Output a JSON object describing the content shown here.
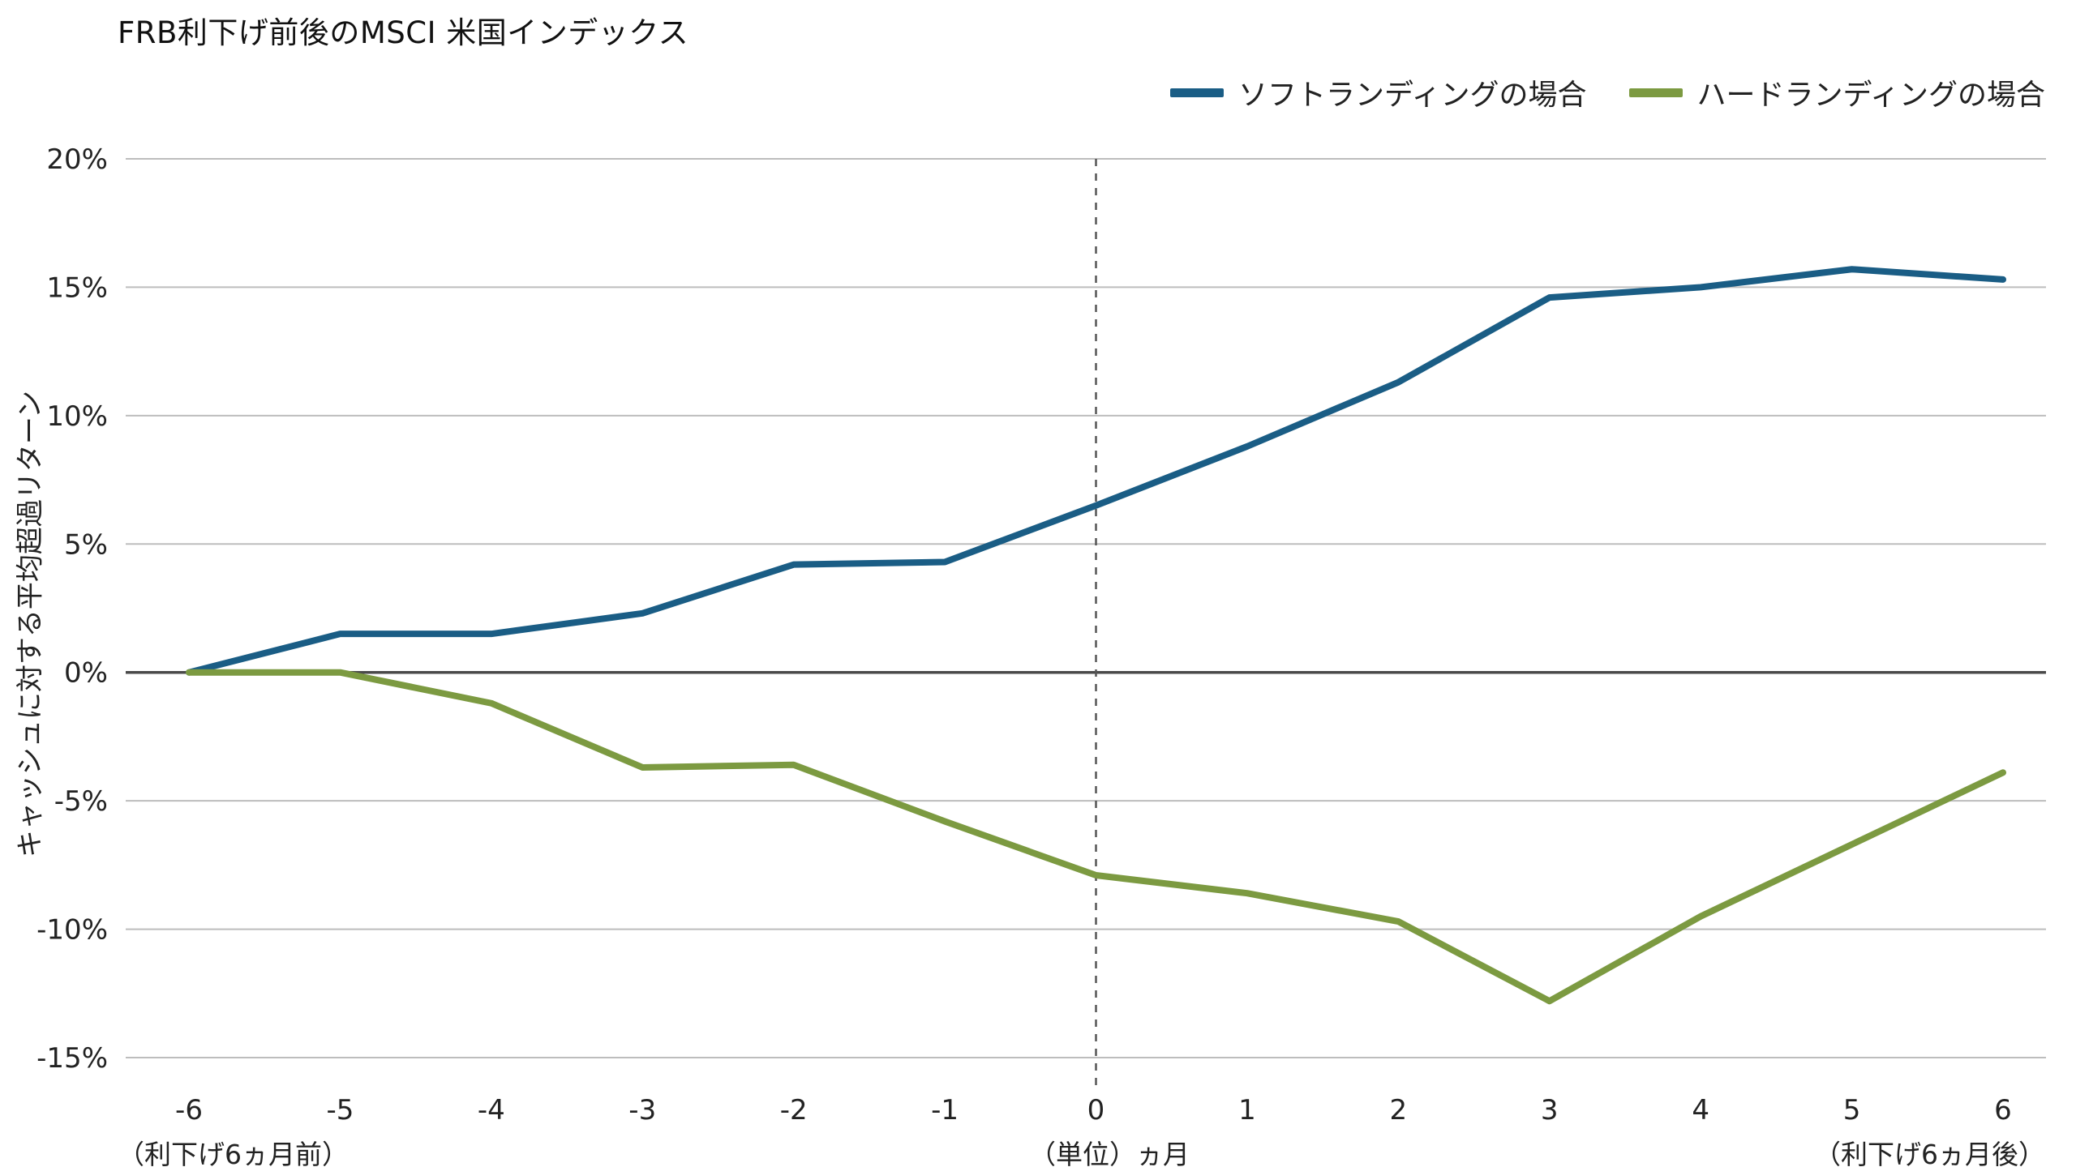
{
  "title": "FRB利下げ前後のMSCI 米国インデックス",
  "ylabel": "キャッシュに対する平均超過リターン",
  "xlabel": "（単位）ヵ月",
  "footer_left": "（利下げ6ヵ月前）",
  "footer_right": "（利下げ6ヵ月後）",
  "legend": [
    {
      "label": "ソフトランディングの場合",
      "color": "#1a5d85"
    },
    {
      "label": "ハードランディングの場合",
      "color": "#7c9a41"
    }
  ],
  "colors": {
    "grid": "#bdbdbd",
    "zero_line": "#4a4a4a",
    "vline": "#555555",
    "text": "#222222"
  },
  "chart_data": {
    "type": "line",
    "title": "FRB利下げ前後のMSCI 米国インデックス",
    "xlabel": "（単位）ヵ月",
    "ylabel": "キャッシュに対する平均超過リターン",
    "x": [
      -6,
      -5,
      -4,
      -3,
      -2,
      -1,
      0,
      1,
      2,
      3,
      4,
      5,
      6
    ],
    "xticks": [
      -6,
      -5,
      -4,
      -3,
      -2,
      -1,
      0,
      1,
      2,
      3,
      4,
      5,
      6
    ],
    "yticks": [
      20,
      15,
      10,
      5,
      0,
      -5,
      -10,
      -15
    ],
    "ylim": [
      -15,
      20
    ],
    "ytick_suffix": "%",
    "grid": "horizontal",
    "vline_x": 0,
    "legend_position": "top-right",
    "series": [
      {
        "name": "ソフトランディングの場合",
        "color": "#1a5d85",
        "values": [
          0,
          1.5,
          1.5,
          2.3,
          4.2,
          4.3,
          6.5,
          8.8,
          11.3,
          14.6,
          15.0,
          15.7,
          15.3
        ]
      },
      {
        "name": "ハードランディングの場合",
        "color": "#7c9a41",
        "values": [
          0,
          0,
          -1.2,
          -3.7,
          -3.6,
          -5.8,
          -7.9,
          -8.6,
          -9.7,
          -12.8,
          -9.5,
          -6.7,
          -3.9
        ]
      }
    ]
  }
}
